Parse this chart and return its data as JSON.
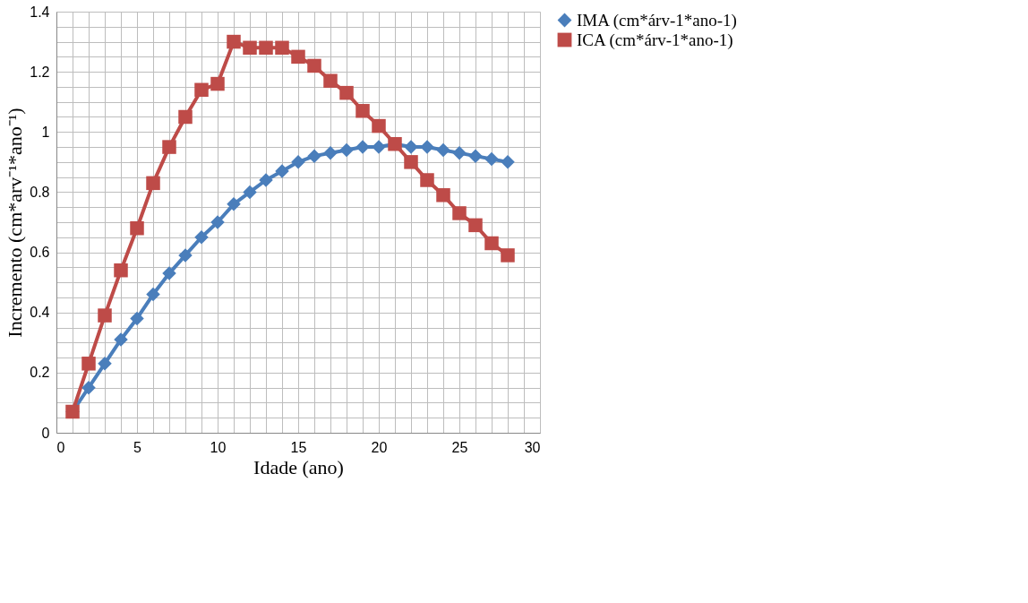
{
  "chart_data": {
    "type": "line",
    "xlabel": "Idade (ano)",
    "ylabel": "Incremento (cm*arv⁻¹*ano⁻¹)",
    "x": [
      1,
      2,
      3,
      4,
      5,
      6,
      7,
      8,
      9,
      10,
      11,
      12,
      13,
      14,
      15,
      16,
      17,
      18,
      19,
      20,
      21,
      22,
      23,
      24,
      25,
      26,
      27,
      28
    ],
    "series": [
      {
        "name": "IMA (cm*árv-1*ano-1)",
        "color": "#4a7ebb",
        "marker": "diamond",
        "values": [
          0.07,
          0.15,
          0.23,
          0.31,
          0.38,
          0.46,
          0.53,
          0.59,
          0.65,
          0.7,
          0.76,
          0.8,
          0.84,
          0.87,
          0.9,
          0.92,
          0.93,
          0.94,
          0.95,
          0.95,
          0.96,
          0.95,
          0.95,
          0.94,
          0.93,
          0.92,
          0.91,
          0.9
        ]
      },
      {
        "name": "ICA (cm*árv-1*ano-1)",
        "color": "#be4b48",
        "marker": "square",
        "values": [
          0.07,
          0.23,
          0.39,
          0.54,
          0.68,
          0.83,
          0.95,
          1.05,
          1.14,
          1.16,
          1.3,
          1.28,
          1.28,
          1.28,
          1.25,
          1.22,
          1.17,
          1.13,
          1.07,
          1.02,
          0.96,
          0.9,
          0.84,
          0.79,
          0.73,
          0.69,
          0.63,
          0.59
        ]
      }
    ],
    "xlim": [
      0,
      30
    ],
    "xticks": [
      0,
      {
        "value": 1,
        "label": null
      },
      {
        "value": 2,
        "label": null
      },
      {
        "value": 3,
        "label": null
      },
      {
        "value": 4,
        "label": null
      },
      5,
      {
        "value": 6,
        "label": null
      },
      {
        "value": 7,
        "label": null
      },
      {
        "value": 8,
        "label": null
      },
      {
        "value": 9,
        "label": null
      },
      10,
      {
        "value": 11,
        "label": null
      },
      {
        "value": 12,
        "label": null
      },
      {
        "value": 13,
        "label": null
      },
      {
        "value": 14,
        "label": null
      },
      15,
      {
        "value": 16,
        "label": null
      },
      {
        "value": 17,
        "label": null
      },
      {
        "value": 18,
        "label": null
      },
      {
        "value": 19,
        "label": null
      },
      20,
      {
        "value": 21,
        "label": null
      },
      {
        "value": 22,
        "label": null
      },
      {
        "value": 23,
        "label": null
      },
      {
        "value": 24,
        "label": null
      },
      25,
      {
        "value": 26,
        "label": null
      },
      {
        "value": 27,
        "label": null
      },
      {
        "value": 28,
        "label": null
      },
      {
        "value": 29,
        "label": null
      },
      30
    ],
    "ylim": [
      0,
      1.4
    ],
    "yticks": [
      0,
      {
        "value": 0.05,
        "label": null
      },
      {
        "value": 0.1,
        "label": null
      },
      {
        "value": 0.15,
        "label": null
      },
      {
        "value": 0.2,
        "label": "0.2"
      },
      {
        "value": 0.25,
        "label": null
      },
      {
        "value": 0.3,
        "label": null
      },
      {
        "value": 0.35,
        "label": null
      },
      {
        "value": 0.4,
        "label": "0.4"
      },
      {
        "value": 0.45,
        "label": null
      },
      {
        "value": 0.5,
        "label": null
      },
      {
        "value": 0.55,
        "label": null
      },
      {
        "value": 0.6,
        "label": "0.6"
      },
      {
        "value": 0.65,
        "label": null
      },
      {
        "value": 0.7,
        "label": null
      },
      {
        "value": 0.75,
        "label": null
      },
      {
        "value": 0.8,
        "label": "0.8"
      },
      {
        "value": 0.85,
        "label": null
      },
      {
        "value": 0.9,
        "label": null
      },
      {
        "value": 0.95,
        "label": null
      },
      1,
      {
        "value": 1.05,
        "label": null
      },
      {
        "value": 1.1,
        "label": null
      },
      {
        "value": 1.15,
        "label": null
      },
      {
        "value": 1.2,
        "label": "1.2"
      },
      {
        "value": 1.25,
        "label": null
      },
      {
        "value": 1.3,
        "label": null
      },
      {
        "value": 1.35,
        "label": null
      },
      {
        "value": 1.4,
        "label": "1.4"
      }
    ],
    "grid": true,
    "legend": "right",
    "line_style": "solid"
  }
}
